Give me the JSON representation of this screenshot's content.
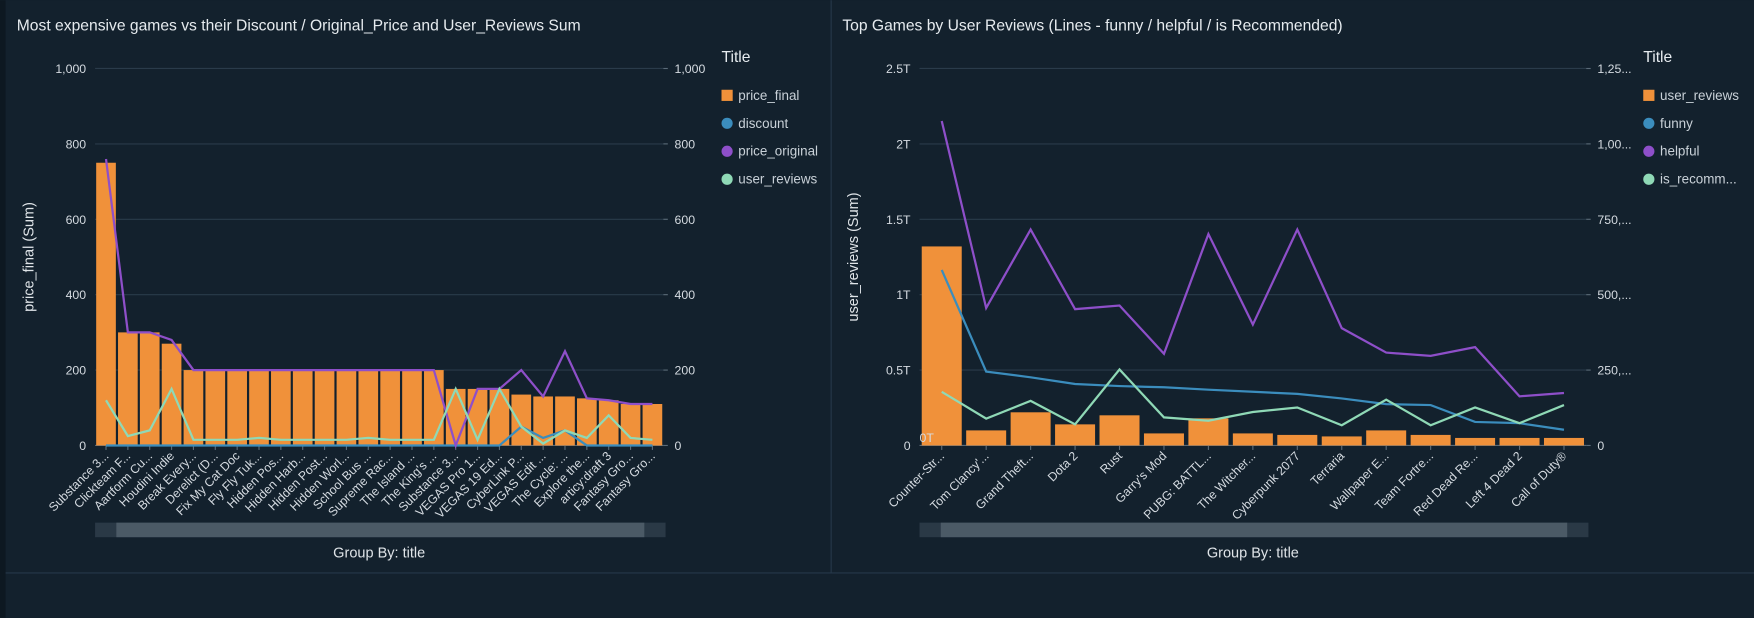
{
  "chart_data": [
    {
      "type": "combo",
      "title": "Most expensive games vs their Discount / Original_Price and User_Reviews Sum",
      "y_label": "price_final (Sum)",
      "x_label": "Group By: title",
      "legend_title": "Title",
      "categories": [
        "Substance 3...",
        "Clickteam F...",
        "Aartform Cu...",
        "Houdini Indie",
        "Break Every...",
        "Derelict (D...",
        "Fix My Cat Doc",
        "Fly Fly Tuk...",
        "Hidden Pos...",
        "Hidden Harb...",
        "Hidden Post...",
        "Hidden Worl...",
        "School Bus ...",
        "Supreme Rac...",
        "The Island ...",
        "The King's ...",
        "Substance 3...",
        "VEGAS Pro 1...",
        "VEGAS 19 Ed...",
        "CyberLink P...",
        "VEGAS Edit ...",
        "The Cycle: ...",
        "Explore the...",
        "articy:draft 3",
        "Fantasy Gro...",
        "Fantasy Gro..."
      ],
      "series": [
        {
          "name": "price_final",
          "type": "bar",
          "color": "#f0913a",
          "values": [
            750,
            300,
            300,
            270,
            200,
            200,
            200,
            200,
            200,
            200,
            200,
            200,
            200,
            200,
            200,
            200,
            150,
            150,
            150,
            135,
            130,
            130,
            125,
            120,
            110,
            110
          ]
        },
        {
          "name": "discount",
          "type": "line",
          "color": "#3b8dbd",
          "axis": "y2",
          "values": [
            0,
            0,
            0,
            0,
            0,
            0,
            0,
            0,
            0,
            0,
            0,
            0,
            0,
            0,
            0,
            0,
            0,
            0,
            0,
            50,
            20,
            40,
            0,
            0,
            0,
            0
          ]
        },
        {
          "name": "price_original",
          "type": "line",
          "color": "#8e4fc9",
          "values": [
            760,
            300,
            300,
            280,
            200,
            200,
            200,
            200,
            200,
            200,
            200,
            200,
            200,
            200,
            200,
            200,
            0,
            150,
            150,
            200,
            130,
            250,
            125,
            120,
            110,
            110
          ]
        },
        {
          "name": "user_reviews",
          "type": "line",
          "color": "#8fd9b6",
          "axis": "y2",
          "values": [
            120,
            25,
            40,
            150,
            15,
            15,
            15,
            20,
            15,
            15,
            15,
            15,
            20,
            15,
            15,
            15,
            150,
            15,
            150,
            50,
            5,
            40,
            20,
            80,
            20,
            15
          ]
        }
      ],
      "ylim": [
        0,
        1000
      ],
      "yticks": [
        0,
        200,
        400,
        600,
        800,
        {
          "value": 1000,
          "label": "1,000"
        }
      ],
      "y2lim": [
        0,
        1000
      ],
      "y2ticks": [
        0,
        200,
        400,
        600,
        800,
        {
          "value": 1000,
          "label": "1,000"
        }
      ],
      "grid": true
    },
    {
      "type": "combo",
      "title": "Top Games by User Reviews (Lines - funny / helpful / is Recommended)",
      "y_label": "user_reviews (Sum)",
      "x_label": "Group By: title",
      "legend_title": "Title",
      "annotations": [
        "0T"
      ],
      "categories": [
        "Counter-Str...",
        "Tom Clancy'...",
        "Grand Theft...",
        "Dota 2",
        "Rust",
        "Garry's Mod",
        "PUBG: BATTL...",
        "The Witcher...",
        "Cyberpunk 2077",
        "Terraria",
        "Wallpaper E...",
        "Team Fortre...",
        "Red Dead Re...",
        "Left 4 Dead 2",
        "Call of Duty®"
      ],
      "series": [
        {
          "name": "user_reviews",
          "type": "bar",
          "color": "#f0913a",
          "values": [
            1320000000000,
            100000000000,
            220000000000,
            140000000000,
            200000000000,
            80000000000,
            180000000000,
            80000000000,
            70000000000,
            60000000000,
            100000000000,
            70000000000,
            50000000000,
            50000000000,
            50000000000
          ]
        },
        {
          "name": "funny",
          "type": "line",
          "color": "#3b8dbd",
          "axis": "y2",
          "values": [
            582000,
            245000,
            226000,
            204000,
            197000,
            193000,
            185000,
            178000,
            171000,
            156000,
            137000,
            134000,
            78000,
            74000,
            52000
          ]
        },
        {
          "name": "helpful",
          "type": "line",
          "color": "#8e4fc9",
          "axis": "y2",
          "values": [
            1076000,
            456000,
            716000,
            452000,
            464000,
            304000,
            701000,
            401000,
            716000,
            389000,
            308000,
            297000,
            326000,
            163000,
            174000
          ]
        },
        {
          "name": "is_recomm...",
          "type": "line",
          "color": "#8fd9b6",
          "axis": "y2",
          "values": [
            178000,
            89000,
            148000,
            70000,
            252000,
            93000,
            82000,
            111000,
            126000,
            67000,
            152000,
            67000,
            126000,
            74000,
            134000
          ]
        }
      ],
      "ylim": [
        0,
        2500000000000
      ],
      "yticks": [
        0,
        {
          "value": 500000000000,
          "label": "0.5T"
        },
        {
          "value": 1000000000000,
          "label": "1T"
        },
        {
          "value": 1500000000000,
          "label": "1.5T"
        },
        {
          "value": 2000000000000,
          "label": "2T"
        },
        {
          "value": 2500000000000,
          "label": "2.5T"
        }
      ],
      "y2lim": [
        0,
        1250000
      ],
      "y2ticks": [
        0,
        {
          "value": 250000,
          "label": "250,..."
        },
        {
          "value": 500000,
          "label": "500,..."
        },
        {
          "value": 750000,
          "label": "750,..."
        },
        {
          "value": 1000000,
          "label": "1,00..."
        },
        {
          "value": 1250000,
          "label": "1,25..."
        }
      ],
      "grid": true
    }
  ]
}
